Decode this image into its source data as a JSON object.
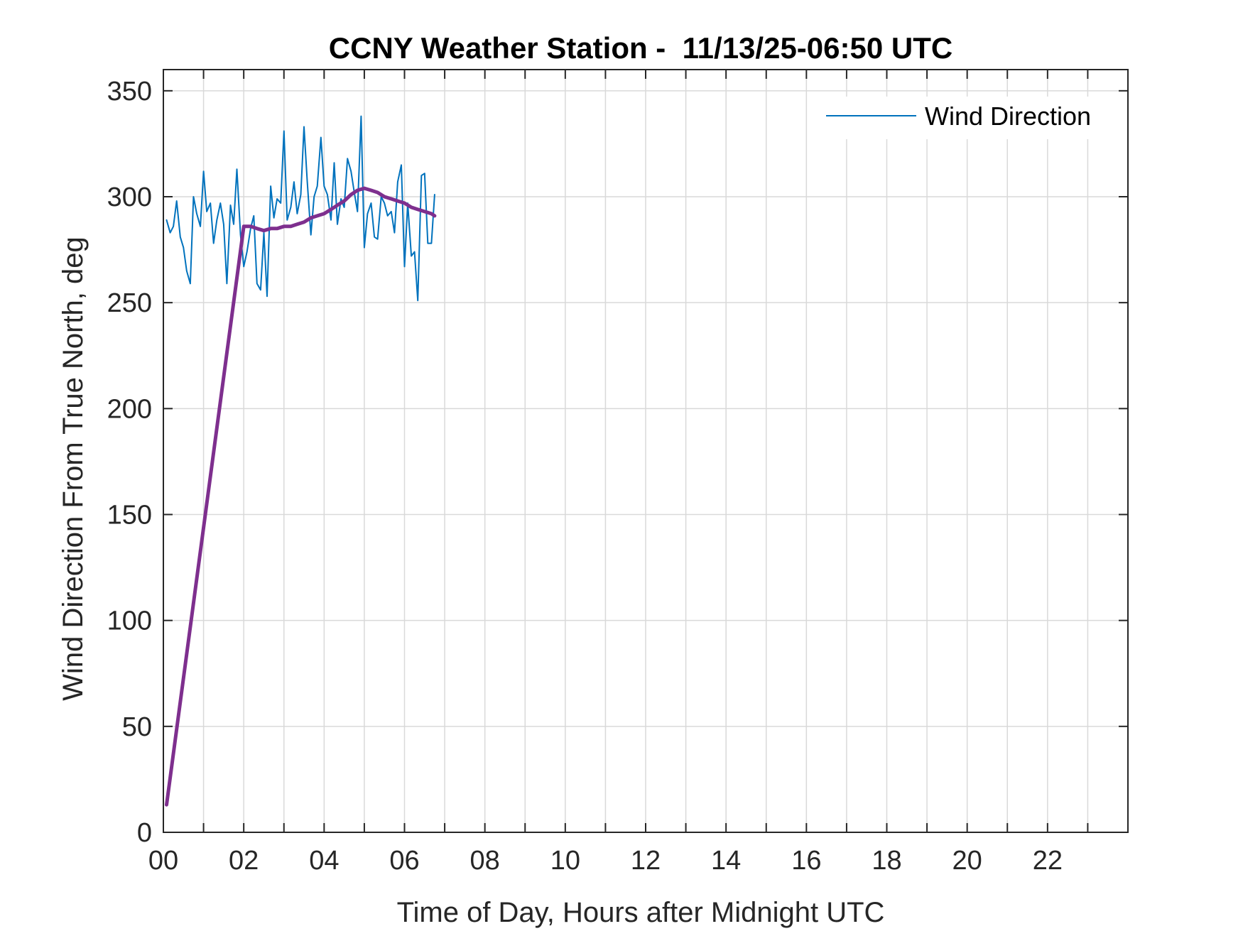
{
  "chart_data": {
    "type": "line",
    "title": "CCNY Weather Station -  11/13/25-06:50 UTC",
    "xlabel": "Time of Day, Hours after Midnight UTC",
    "ylabel": "Wind Direction From True North, deg",
    "xlim": [
      0,
      24
    ],
    "ylim": [
      0,
      360
    ],
    "x_ticks": [
      0,
      2,
      4,
      6,
      8,
      10,
      12,
      14,
      16,
      18,
      20,
      22
    ],
    "x_tick_labels": [
      "00",
      "02",
      "04",
      "06",
      "08",
      "10",
      "12",
      "14",
      "16",
      "18",
      "20",
      "22"
    ],
    "x_minor_ticks": [
      1,
      3,
      5,
      7,
      9,
      11,
      13,
      15,
      17,
      19,
      21,
      23
    ],
    "y_ticks": [
      0,
      50,
      100,
      150,
      200,
      250,
      300,
      350
    ],
    "y_tick_labels": [
      "0",
      "50",
      "100",
      "150",
      "200",
      "250",
      "300",
      "350"
    ],
    "grid": true,
    "legend_position": "top-right",
    "series": [
      {
        "name": "Wind Direction",
        "color": "#0072BD",
        "x": [
          0.08,
          0.17,
          0.25,
          0.33,
          0.42,
          0.5,
          0.58,
          0.67,
          0.75,
          0.83,
          0.92,
          1.0,
          1.08,
          1.17,
          1.25,
          1.33,
          1.42,
          1.5,
          1.58,
          1.67,
          1.75,
          1.83,
          1.92,
          2.0,
          2.08,
          2.17,
          2.25,
          2.33,
          2.42,
          2.5,
          2.58,
          2.67,
          2.75,
          2.83,
          2.92,
          3.0,
          3.08,
          3.17,
          3.25,
          3.33,
          3.42,
          3.5,
          3.58,
          3.67,
          3.75,
          3.83,
          3.92,
          4.0,
          4.08,
          4.17,
          4.25,
          4.33,
          4.42,
          4.5,
          4.58,
          4.67,
          4.75,
          4.83,
          4.92,
          5.0,
          5.08,
          5.17,
          5.25,
          5.33,
          5.42,
          5.5,
          5.58,
          5.67,
          5.75,
          5.83,
          5.92,
          6.0,
          6.08,
          6.17,
          6.25,
          6.33,
          6.42,
          6.5,
          6.58,
          6.67,
          6.75
        ],
        "y": [
          289,
          283,
          286,
          298,
          281,
          276,
          265,
          259,
          300,
          292,
          286,
          312,
          293,
          297,
          278,
          289,
          297,
          287,
          259,
          296,
          287,
          313,
          282,
          267,
          274,
          285,
          291,
          259,
          256,
          283,
          253,
          305,
          290,
          299,
          297,
          331,
          289,
          295,
          307,
          292,
          301,
          333,
          307,
          282,
          300,
          305,
          328,
          305,
          301,
          289,
          316,
          287,
          299,
          295,
          318,
          312,
          302,
          293,
          338,
          276,
          292,
          297,
          281,
          280,
          300,
          297,
          291,
          293,
          283,
          307,
          315,
          267,
          297,
          272,
          274,
          251,
          310,
          311,
          278,
          278,
          301
        ]
      },
      {
        "name": "",
        "color": "#7E2F8E",
        "x": [
          0.08,
          2.0,
          2.17,
          2.33,
          2.5,
          2.67,
          2.83,
          3.0,
          3.17,
          3.33,
          3.5,
          3.67,
          3.83,
          4.0,
          4.17,
          4.33,
          4.5,
          4.67,
          4.83,
          5.0,
          5.17,
          5.33,
          5.5,
          5.67,
          5.83,
          6.0,
          6.17,
          6.33,
          6.5,
          6.67,
          6.75
        ],
        "y": [
          13,
          286,
          286,
          285,
          284,
          285,
          285,
          286,
          286,
          287,
          288,
          290,
          291,
          292,
          294,
          296,
          298,
          301,
          303,
          304,
          303,
          302,
          300,
          299,
          298,
          297,
          295,
          294,
          293,
          292,
          291
        ]
      }
    ]
  }
}
